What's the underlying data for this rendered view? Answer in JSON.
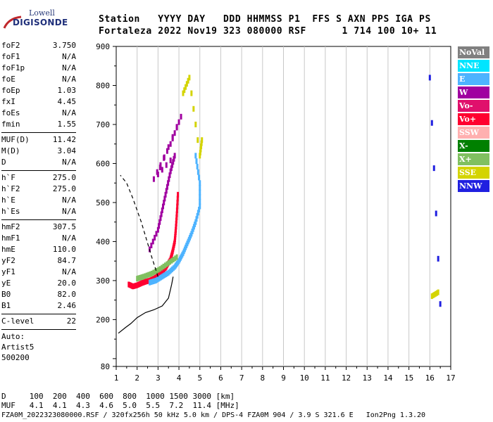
{
  "logo": {
    "line1": "Lowell",
    "line2": "DIGISONDE"
  },
  "header": {
    "line1": "Station   YYYY DAY   DDD HHMMSS P1  FFS S AXN PPS IGA PS",
    "line2": "Fortaleza 2022 Nov19 323 080000 RSF      1 714 100 10+ 11"
  },
  "params": {
    "group1": [
      {
        "key": "foF2",
        "value": "3.750"
      },
      {
        "key": "foF1",
        "value": "N/A"
      },
      {
        "key": "foF1p",
        "value": "N/A"
      },
      {
        "key": "foE",
        "value": "N/A"
      },
      {
        "key": "foEp",
        "value": "1.03"
      },
      {
        "key": "fxI",
        "value": "4.45"
      },
      {
        "key": "foEs",
        "value": "N/A"
      },
      {
        "key": "fmin",
        "value": "1.55"
      }
    ],
    "group2": [
      {
        "key": "MUF(D)",
        "value": "11.42"
      },
      {
        "key": "M(D)",
        "value": "3.04"
      },
      {
        "key": "D",
        "value": "N/A"
      }
    ],
    "group3": [
      {
        "key": "h`F",
        "value": "275.0"
      },
      {
        "key": "h`F2",
        "value": "275.0"
      },
      {
        "key": "h`E",
        "value": "N/A"
      },
      {
        "key": "h`Es",
        "value": "N/A"
      }
    ],
    "group4": [
      {
        "key": "hmF2",
        "value": "307.5"
      },
      {
        "key": "hmF1",
        "value": "N/A"
      },
      {
        "key": "hmE",
        "value": "110.0"
      },
      {
        "key": "yF2",
        "value": "84.7"
      },
      {
        "key": "yF1",
        "value": "N/A"
      },
      {
        "key": "yE",
        "value": "20.0"
      },
      {
        "key": "B0",
        "value": "82.0"
      },
      {
        "key": "B1",
        "value": "2.46"
      }
    ],
    "clevel": {
      "key": "C-level",
      "value": "22"
    },
    "auto": [
      "Auto:",
      "Artist5",
      "500200"
    ]
  },
  "legend": [
    {
      "label": "NoVal",
      "color": "#808080"
    },
    {
      "label": "NNE",
      "color": "#00e5ff"
    },
    {
      "label": "E",
      "color": "#4db3ff"
    },
    {
      "label": "W",
      "color": "#a000a0"
    },
    {
      "label": "Vo-",
      "color": "#e0106c"
    },
    {
      "label": "Vo+",
      "color": "#ff0030"
    },
    {
      "label": "SSW",
      "color": "#ffb0b0"
    },
    {
      "label": "X-",
      "color": "#008000"
    },
    {
      "label": "X+",
      "color": "#80c060"
    },
    {
      "label": "SSE",
      "color": "#d4d400"
    },
    {
      "label": "NNW",
      "color": "#2020e0"
    }
  ],
  "chart_data": {
    "type": "scatter",
    "xlim": [
      1,
      17
    ],
    "ylim": [
      80,
      900
    ],
    "x_ticks": [
      1,
      2,
      3,
      4,
      5,
      6,
      7,
      8,
      9,
      10,
      11,
      12,
      13,
      14,
      15,
      16,
      17
    ],
    "y_ticks": [
      80,
      100,
      200,
      300,
      400,
      500,
      600,
      700,
      800,
      900
    ],
    "y_tick_labels": [
      "80",
      "",
      "200",
      "300",
      "400",
      "500",
      "600",
      "700",
      "800",
      "900"
    ],
    "grid": "vertical",
    "legend_position": "right",
    "series": [
      {
        "name": "Vo+",
        "color": "#ff0030",
        "points": [
          [
            1.6,
            290
          ],
          [
            1.8,
            285
          ],
          [
            2.0,
            288
          ],
          [
            2.2,
            293
          ],
          [
            2.4,
            297
          ],
          [
            2.6,
            300
          ],
          [
            2.8,
            305
          ],
          [
            3.0,
            312
          ],
          [
            3.2,
            322
          ],
          [
            3.4,
            335
          ],
          [
            3.6,
            355
          ],
          [
            3.7,
            375
          ],
          [
            3.8,
            400
          ],
          [
            3.85,
            430
          ],
          [
            3.9,
            470
          ],
          [
            3.95,
            520
          ]
        ]
      },
      {
        "name": "E",
        "color": "#4db3ff",
        "points": [
          [
            2.6,
            295
          ],
          [
            2.9,
            300
          ],
          [
            3.2,
            310
          ],
          [
            3.5,
            320
          ],
          [
            3.8,
            335
          ],
          [
            4.0,
            350
          ],
          [
            4.2,
            370
          ],
          [
            4.4,
            395
          ],
          [
            4.6,
            420
          ],
          [
            4.8,
            450
          ],
          [
            5.0,
            490
          ],
          [
            5.0,
            550
          ],
          [
            4.8,
            620
          ]
        ]
      },
      {
        "name": "W",
        "color": "#a000a0",
        "points": [
          [
            2.6,
            380
          ],
          [
            3.0,
            430
          ],
          [
            3.2,
            480
          ],
          [
            3.4,
            530
          ],
          [
            3.6,
            580
          ],
          [
            3.8,
            620
          ],
          [
            2.8,
            560
          ],
          [
            3.6,
            650
          ],
          [
            4.1,
            720
          ],
          [
            3.1,
            590
          ]
        ]
      },
      {
        "name": "X+",
        "color": "#80c060",
        "points": [
          [
            2.0,
            305
          ],
          [
            2.3,
            310
          ],
          [
            2.7,
            318
          ],
          [
            3.1,
            330
          ],
          [
            3.5,
            345
          ],
          [
            3.9,
            360
          ]
        ]
      },
      {
        "name": "SSE",
        "color": "#d4d400",
        "points": [
          [
            4.2,
            780
          ],
          [
            4.5,
            820
          ],
          [
            5.0,
            620
          ],
          [
            5.1,
            660
          ],
          [
            16.1,
            260
          ],
          [
            16.4,
            270
          ]
        ]
      },
      {
        "name": "NNW",
        "color": "#2020e0",
        "points": [
          [
            16.0,
            820
          ],
          [
            16.5,
            240
          ]
        ]
      }
    ],
    "profile": [
      [
        3.72,
        310
      ],
      [
        3.65,
        290
      ],
      [
        3.5,
        255
      ],
      [
        3.2,
        235
      ],
      [
        2.8,
        225
      ],
      [
        2.4,
        218
      ],
      [
        2.0,
        205
      ],
      [
        1.7,
        190
      ],
      [
        1.45,
        180
      ],
      [
        1.1,
        165
      ]
    ],
    "profile_dashed": [
      [
        3.0,
        310
      ],
      [
        2.7,
        360
      ],
      [
        2.2,
        450
      ],
      [
        1.8,
        510
      ],
      [
        1.5,
        550
      ],
      [
        1.2,
        570
      ]
    ],
    "bottom_table": {
      "row1": "D     100  200  400  600  800  1000 1500 3000 [km]",
      "row2": "MUF   4.1  4.1  4.3  4.6  5.0  5.5  7.2  11.4 [MHz]"
    },
    "footer": "FZA0M_2022323080000.RSF / 320fx256h 50 kHz 5.0 km / DPS-4 FZA0M 904 / 3.9 S 321.6 E   Ion2Png 1.3.20"
  }
}
